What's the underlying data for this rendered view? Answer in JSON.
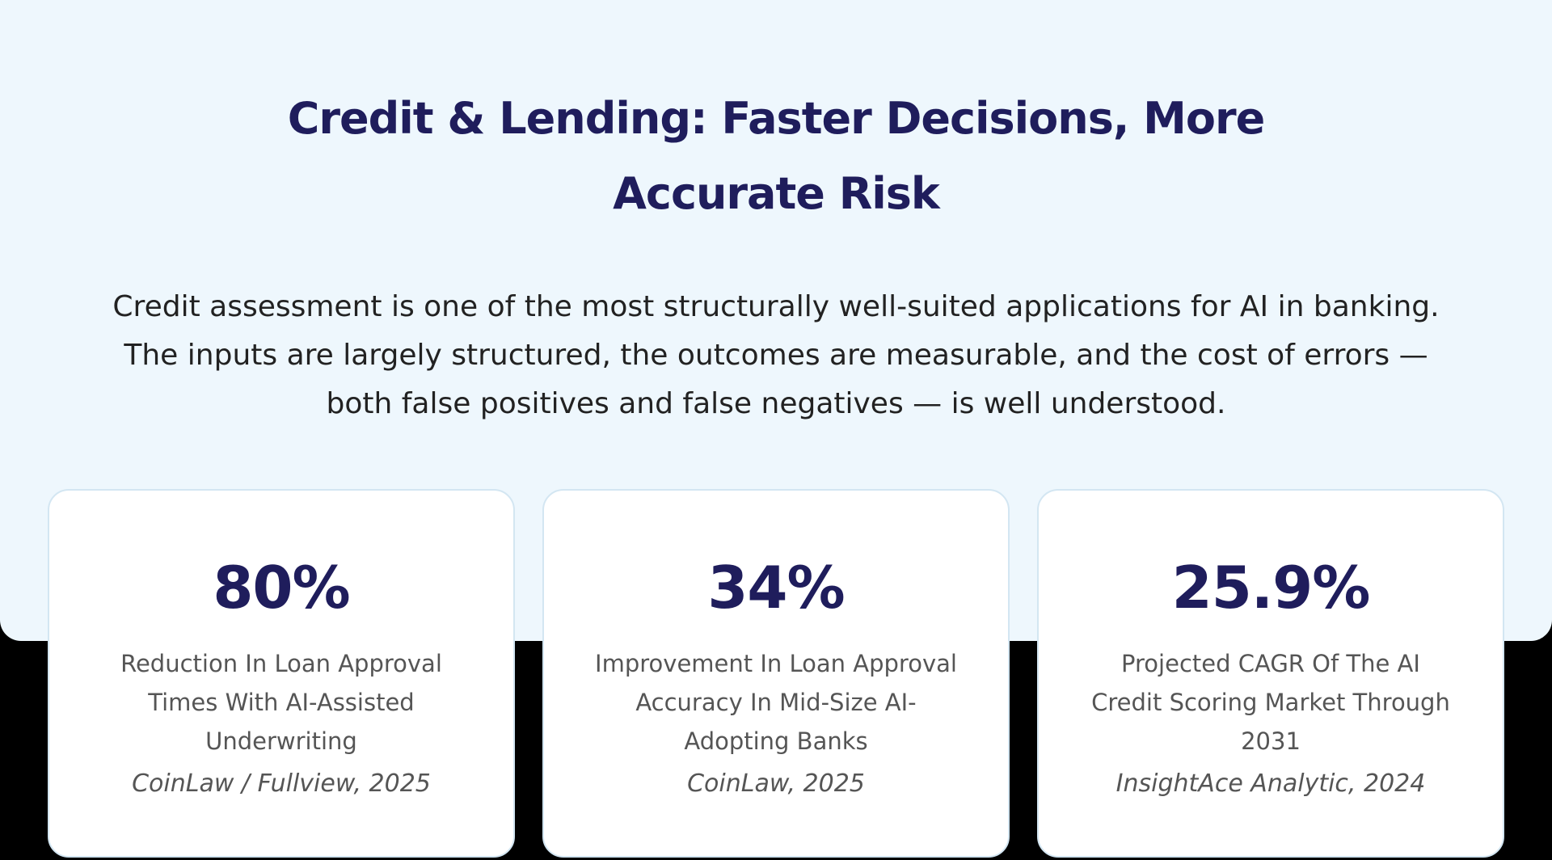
{
  "header": {
    "title": "Credit & Lending: Faster Decisions, More Accurate Risk"
  },
  "intro": "Credit assessment is one of the most structurally well-suited applications for AI in banking. The inputs are largely structured, the outcomes are measurable, and the cost of errors — both false positives and false negatives — is well understood.",
  "stats": [
    {
      "value": "80%",
      "description": "Reduction In Loan Approval Times With AI-Assisted Underwriting",
      "source": "CoinLaw / Fullview, 2025"
    },
    {
      "value": "34%",
      "description": "Improvement In Loan Approval Accuracy In Mid-Size AI-Adopting Banks",
      "source": "CoinLaw, 2025"
    },
    {
      "value": "25.9%",
      "description": "Projected CAGR Of The AI Credit Scoring Market Through 2031",
      "source": "InsightAce Analytic, 2024"
    }
  ]
}
